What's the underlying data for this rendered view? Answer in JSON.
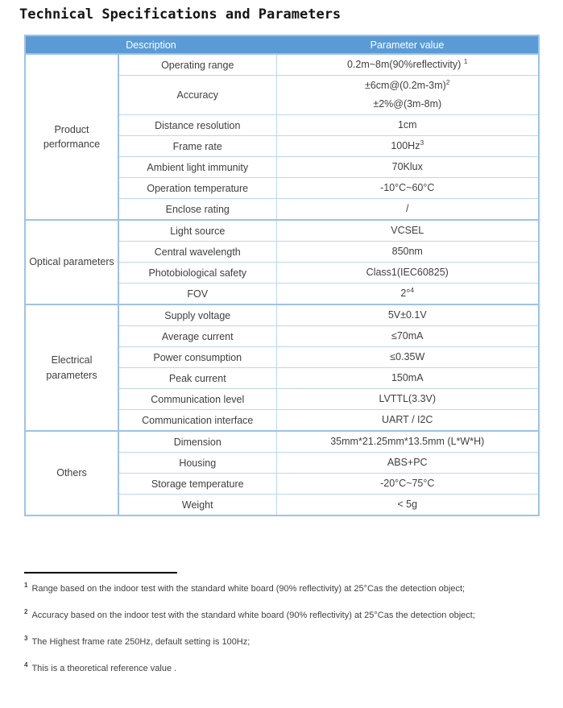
{
  "page": {
    "title": "Technical Specifications and Parameters"
  },
  "colors": {
    "header_bg": "#5b9bd5",
    "header_text": "#ffffff",
    "border_strong": "#9dc3e6",
    "border_light": "#bdd7ee",
    "text": "#3f3f3f"
  },
  "table": {
    "header": {
      "description": "Description",
      "parameter": "Parameter value"
    },
    "groups": [
      {
        "label": "Product performance",
        "rows": [
          {
            "desc": "Operating range",
            "lines": [
              {
                "text": "0.2m~8m(90%reflectivity) ",
                "sup": "1"
              }
            ]
          },
          {
            "desc": "Accuracy",
            "lines": [
              {
                "text": "±6cm@(0.2m-3m)",
                "sup": "2"
              },
              {
                "text": "±2%@(3m-8m)",
                "sup": null
              }
            ]
          },
          {
            "desc": "Distance resolution",
            "lines": [
              {
                "text": "1cm",
                "sup": null
              }
            ]
          },
          {
            "desc": "Frame rate",
            "lines": [
              {
                "text": "100Hz",
                "sup": "3"
              }
            ]
          },
          {
            "desc": "Ambient light immunity",
            "lines": [
              {
                "text": "70Klux",
                "sup": null
              }
            ]
          },
          {
            "desc": "Operation temperature",
            "lines": [
              {
                "text": "-10°C~60°C",
                "sup": null
              }
            ]
          },
          {
            "desc": "Enclose rating",
            "lines": [
              {
                "text": "/",
                "sup": null
              }
            ]
          }
        ]
      },
      {
        "label": "Optical parameters",
        "rows": [
          {
            "desc": "Light source",
            "lines": [
              {
                "text": "VCSEL",
                "sup": null
              }
            ]
          },
          {
            "desc": "Central wavelength",
            "lines": [
              {
                "text": "850nm",
                "sup": null
              }
            ]
          },
          {
            "desc": "Photobiological safety",
            "lines": [
              {
                "text": "Class1(IEC60825)",
                "sup": null
              }
            ]
          },
          {
            "desc": "FOV",
            "lines": [
              {
                "text": "2°",
                "sup": "4"
              }
            ]
          }
        ]
      },
      {
        "label": "Electrical parameters",
        "rows": [
          {
            "desc": "Supply voltage",
            "lines": [
              {
                "text": "5V±0.1V",
                "sup": null
              }
            ]
          },
          {
            "desc": "Average current",
            "lines": [
              {
                "text": "≤70mA",
                "sup": null
              }
            ]
          },
          {
            "desc": "Power consumption",
            "lines": [
              {
                "text": "≤0.35W",
                "sup": null
              }
            ]
          },
          {
            "desc": "Peak current",
            "lines": [
              {
                "text": "150mA",
                "sup": null
              }
            ]
          },
          {
            "desc": "Communication level",
            "lines": [
              {
                "text": "LVTTL(3.3V)",
                "sup": null
              }
            ]
          },
          {
            "desc": "Communication interface",
            "lines": [
              {
                "text": "UART / I2C",
                "sup": null
              }
            ]
          }
        ]
      },
      {
        "label": "Others",
        "rows": [
          {
            "desc": "Dimension",
            "lines": [
              {
                "text": "35mm*21.25mm*13.5mm (L*W*H)",
                "sup": null
              }
            ]
          },
          {
            "desc": "Housing",
            "lines": [
              {
                "text": "ABS+PC",
                "sup": null
              }
            ]
          },
          {
            "desc": "Storage temperature",
            "lines": [
              {
                "text": "-20°C~75°C",
                "sup": null
              }
            ]
          },
          {
            "desc": "Weight",
            "lines": [
              {
                "text": "< 5g",
                "sup": null
              }
            ]
          }
        ]
      }
    ]
  },
  "footnotes": [
    {
      "sup": "1",
      "text": "Range based on the indoor test with the standard white board (90% reflectivity) at 25°Cas the detection object;"
    },
    {
      "sup": "2",
      "text": "Accuracy based on the indoor test with the standard white board (90% reflectivity) at 25°Cas the detection object;"
    },
    {
      "sup": "3",
      "text": "The Highest frame rate 250Hz, default setting is 100Hz;"
    },
    {
      "sup": "4",
      "text": "This is a theoretical reference value ."
    }
  ]
}
